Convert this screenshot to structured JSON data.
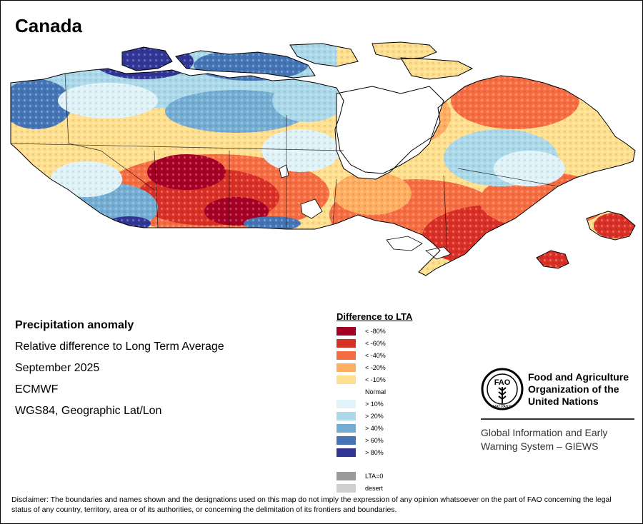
{
  "title": "Canada",
  "info": {
    "heading": "Precipitation anomaly",
    "line1": "Relative difference to Long Term Average",
    "line2": "September 2025",
    "line3": "ECMWF",
    "line4": "WGS84, Geographic Lat/Lon"
  },
  "legend": {
    "title": "Difference to LTA",
    "items": [
      {
        "label": "< -80%",
        "color": "#a50026"
      },
      {
        "label": "< -60%",
        "color": "#d73027"
      },
      {
        "label": "< -40%",
        "color": "#f46d43"
      },
      {
        "label": "< -20%",
        "color": "#fdae61"
      },
      {
        "label": "< -10%",
        "color": "#fee090"
      },
      {
        "label": "Normal",
        "color": "#ffffff"
      },
      {
        "label": "> 10%",
        "color": "#e0f3f8"
      },
      {
        "label": "> 20%",
        "color": "#abd9e9"
      },
      {
        "label": "> 40%",
        "color": "#74add1"
      },
      {
        "label": "> 60%",
        "color": "#4575b4"
      },
      {
        "label": "> 80%",
        "color": "#313695"
      },
      {
        "label": "LTA=0",
        "color": "#9a9a9a"
      },
      {
        "label": "desert",
        "color": "#cfcfcf"
      }
    ]
  },
  "fao": {
    "name1": "Food and Agriculture",
    "name2": "Organization of the",
    "name3": "United Nations",
    "giews1": "Global Information and Early",
    "giews2": "Warning System – GIEWS",
    "logo_text": "FAO",
    "motto": "FIAT PANIS"
  },
  "disclaimer": "Disclaimer: The boundaries and names shown and the designations used on this map do not imply the expression of any opinion whatsoever on the part of FAO concerning the legal status of any country, territory, area or of its authorities, or concerning the delimitation of its frontiers and boundaries."
}
